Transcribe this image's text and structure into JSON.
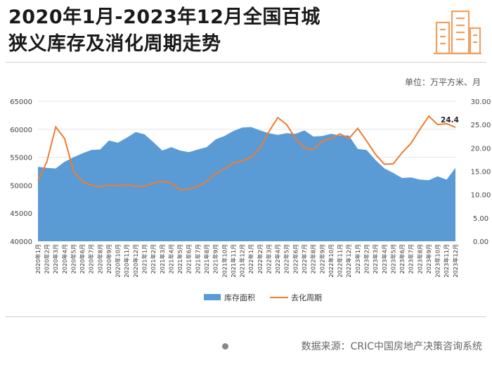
{
  "title_line1": "2020年1月-2023年12月全国百城",
  "title_line2": "狭义库存及消化周期走势",
  "unit_label": "单位：万平方米、月",
  "source_label": "数据来源：CRIC中国房地产决策咨询系统",
  "colors": {
    "area": "#5b9bd5",
    "line": "#ed7d31",
    "accent": "#f0a060"
  },
  "chart_data": {
    "type": "area",
    "categories": [
      "2020年1月",
      "2020年2月",
      "2020年3月",
      "2020年4月",
      "2020年5月",
      "2020年6月",
      "2020年7月",
      "2020年8月",
      "2020年9月",
      "2020年10月",
      "2020年11月",
      "2020年12月",
      "2021年1月",
      "2021年2月",
      "2021年3月",
      "2021年4月",
      "2021年5月",
      "2021年6月",
      "2021年7月",
      "2021年8月",
      "2021年9月",
      "2021年10月",
      "2021年11月",
      "2021年12月",
      "2022年1月",
      "2022年2月",
      "2022年3月",
      "2022年4月",
      "2022年5月",
      "2022年6月",
      "2022年7月",
      "2022年8月",
      "2022年9月",
      "2022年10月",
      "2022年11月",
      "2022年12月",
      "2023年1月",
      "2023年2月",
      "2023年3月",
      "2023年4月",
      "2023年5月",
      "2023年6月",
      "2023年7月",
      "2023年8月",
      "2023年9月",
      "2023年10月",
      "2023年11月",
      "2023年12月"
    ],
    "series": [
      {
        "name": "库存面积",
        "axis": "left",
        "values": [
          53300,
          53100,
          53000,
          54200,
          55000,
          55700,
          56300,
          56400,
          58000,
          57600,
          58500,
          59500,
          59100,
          57700,
          56200,
          56800,
          56200,
          55900,
          56400,
          56800,
          58200,
          58800,
          59700,
          60300,
          60400,
          59800,
          59300,
          59000,
          59300,
          59200,
          59800,
          58700,
          58800,
          59200,
          58900,
          58900,
          56500,
          56300,
          54500,
          53000,
          52200,
          51300,
          51400,
          51000,
          50900,
          51600,
          51000,
          53100
        ]
      },
      {
        "name": "去化周期",
        "axis": "right",
        "values": [
          13.0,
          17.0,
          24.5,
          22.0,
          15.0,
          12.8,
          12.0,
          11.7,
          12.0,
          11.9,
          12.1,
          11.8,
          11.8,
          12.5,
          12.8,
          12.5,
          11.0,
          11.2,
          11.8,
          12.8,
          14.5,
          15.5,
          16.8,
          17.2,
          18.0,
          20.0,
          23.5,
          26.5,
          25.0,
          22.0,
          20.0,
          19.6,
          21.5,
          22.0,
          23.0,
          22.0,
          24.2,
          21.5,
          18.6,
          16.5,
          16.6,
          19.0,
          21.0,
          24.0,
          26.8,
          25.0,
          25.2,
          24.4
        ]
      }
    ],
    "y_left": {
      "min": 40000,
      "max": 65000,
      "ticks": [
        "40000",
        "45000",
        "50000",
        "55000",
        "60000",
        "65000"
      ]
    },
    "y_right": {
      "min": 0,
      "max": 30,
      "ticks": [
        "0.00",
        "5.00",
        "10.00",
        "15.00",
        "20.00",
        "25.00",
        "30.00"
      ]
    },
    "annotation": "24.4",
    "legend": [
      "库存面积",
      "去化周期"
    ]
  }
}
